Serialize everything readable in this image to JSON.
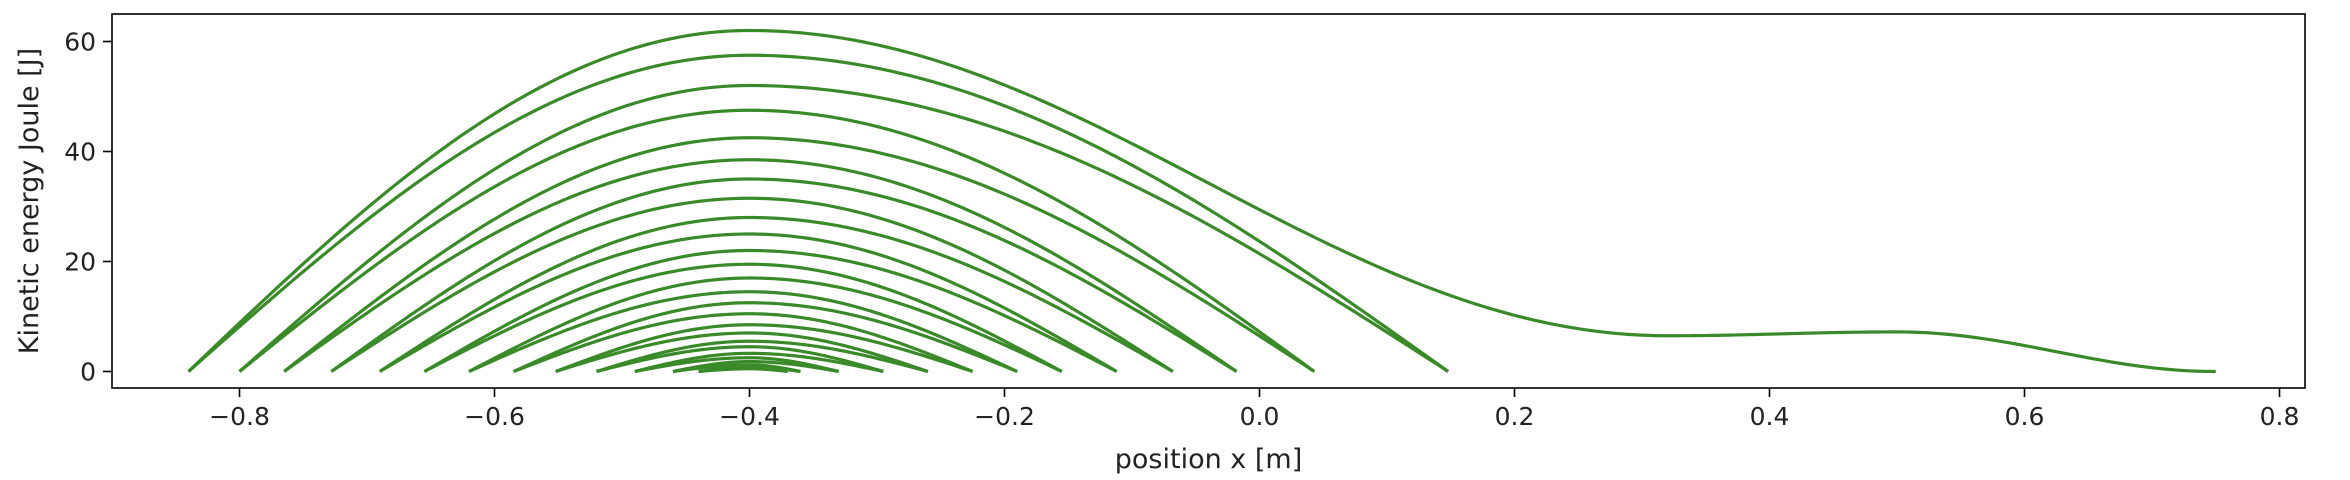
{
  "chart_data": {
    "type": "line",
    "title": "",
    "xlabel": "position x [m]",
    "ylabel": "Kinetic energy Joule [J]",
    "xlim": [
      -0.9,
      0.82
    ],
    "ylim": [
      -3,
      65
    ],
    "xticks": [
      -0.8,
      -0.6,
      -0.4,
      -0.2,
      0.0,
      0.2,
      0.4,
      0.6,
      0.8
    ],
    "xtick_labels": [
      "−0.8",
      "−0.6",
      "−0.4",
      "−0.2",
      "0.0",
      "0.2",
      "0.4",
      "0.6",
      "0.8"
    ],
    "yticks": [
      0,
      20,
      40,
      60
    ],
    "ytick_labels": [
      "0",
      "20",
      "40",
      "60"
    ],
    "grid": false,
    "line_color": "#3a8a2a",
    "center_x": -0.4,
    "first_arc": {
      "x_start": -0.84,
      "x_end": 0.75,
      "peak": 62,
      "plateau_x": [
        0.32,
        0.5
      ],
      "plateau_y": [
        6.5,
        7.2
      ]
    },
    "arcs": [
      {
        "x_start": -0.84,
        "x_end": 0.148,
        "peak": 57.5
      },
      {
        "x_start": -0.8,
        "x_end": 0.148,
        "peak": 52.0
      },
      {
        "x_start": -0.8,
        "x_end": 0.043,
        "peak": 47.5
      },
      {
        "x_start": -0.765,
        "x_end": 0.043,
        "peak": 42.5
      },
      {
        "x_start": -0.765,
        "x_end": -0.018,
        "peak": 38.5
      },
      {
        "x_start": -0.728,
        "x_end": -0.018,
        "peak": 35.0
      },
      {
        "x_start": -0.728,
        "x_end": -0.068,
        "peak": 31.5
      },
      {
        "x_start": -0.69,
        "x_end": -0.068,
        "peak": 28.0
      },
      {
        "x_start": -0.69,
        "x_end": -0.112,
        "peak": 25.0
      },
      {
        "x_start": -0.655,
        "x_end": -0.112,
        "peak": 22.0
      },
      {
        "x_start": -0.655,
        "x_end": -0.155,
        "peak": 19.5
      },
      {
        "x_start": -0.62,
        "x_end": -0.155,
        "peak": 17.0
      },
      {
        "x_start": -0.62,
        "x_end": -0.19,
        "peak": 14.5
      },
      {
        "x_start": -0.585,
        "x_end": -0.19,
        "peak": 12.5
      },
      {
        "x_start": -0.585,
        "x_end": -0.225,
        "peak": 10.5
      },
      {
        "x_start": -0.552,
        "x_end": -0.225,
        "peak": 8.5
      },
      {
        "x_start": -0.552,
        "x_end": -0.26,
        "peak": 7.0
      },
      {
        "x_start": -0.52,
        "x_end": -0.26,
        "peak": 5.5
      },
      {
        "x_start": -0.52,
        "x_end": -0.295,
        "peak": 4.5
      },
      {
        "x_start": -0.49,
        "x_end": -0.295,
        "peak": 3.3
      },
      {
        "x_start": -0.49,
        "x_end": -0.33,
        "peak": 2.5
      },
      {
        "x_start": -0.46,
        "x_end": -0.33,
        "peak": 1.8
      },
      {
        "x_start": -0.46,
        "x_end": -0.36,
        "peak": 1.2
      },
      {
        "x_start": -0.44,
        "x_end": -0.36,
        "peak": 0.8
      },
      {
        "x_start": -0.44,
        "x_end": -0.37,
        "peak": 0.5
      }
    ]
  }
}
